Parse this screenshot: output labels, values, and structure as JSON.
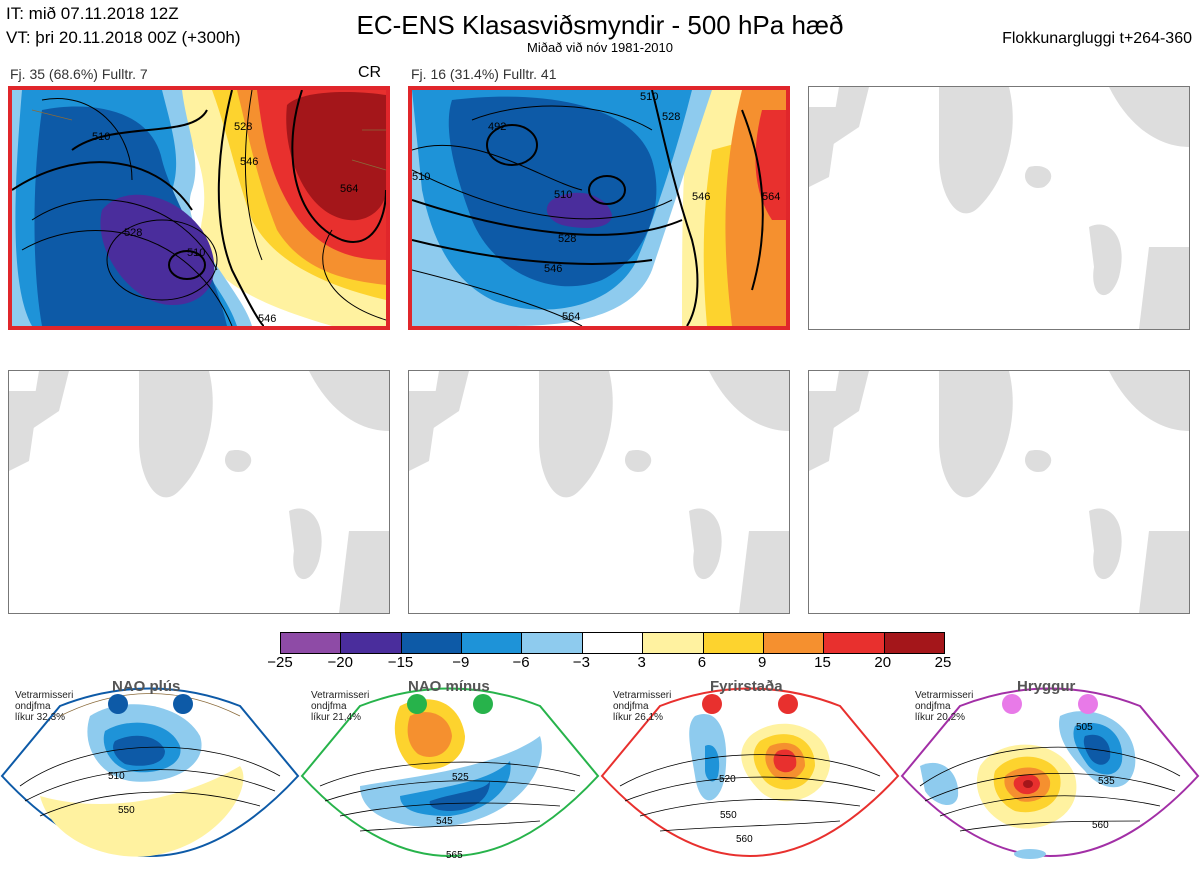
{
  "header": {
    "it_line": "IT: mið 07.11.2018 12Z",
    "vt_line": "VT: þri 20.11.2018 00Z  (+300h)",
    "title": "EC-ENS Klasasviðsmyndir - 500 hPa hæð",
    "subtitle": "Miðað við nóv 1981-2010",
    "window": "Flokkunargluggi t+264-360"
  },
  "clusters": [
    {
      "label": "Fj. 35 (68.6%)   Fulltr. 7",
      "tag": "CR",
      "contours": [
        "510",
        "528",
        "546",
        "564",
        "528",
        "510",
        "546"
      ]
    },
    {
      "label": "Fj. 16 (31.4%)   Fulltr. 41",
      "tag": "",
      "contours": [
        "492",
        "510",
        "528",
        "546",
        "564",
        "510",
        "546",
        "564",
        "528",
        "510"
      ]
    }
  ],
  "colorbar": {
    "colors": [
      "#8e4ba6",
      "#4a2d9c",
      "#0d5aa7",
      "#1e93d8",
      "#8ecbee",
      "#ffffff",
      "#fff2a0",
      "#fdd32e",
      "#f5902f",
      "#e8302e",
      "#a4161a"
    ],
    "labels": [
      "−25",
      "−20",
      "−15",
      "−9",
      "−6",
      "−3",
      "3",
      "6",
      "9",
      "15",
      "20",
      "25"
    ]
  },
  "regimes": [
    {
      "name": "NAO plús",
      "note1": "Vetrarmisseri",
      "note2": "ondjfma",
      "note3": "líkur 32,3%",
      "color": "#0d5aa7",
      "contours": [
        "510",
        "550"
      ]
    },
    {
      "name": "NAO mínus",
      "note1": "Vetrarmisseri",
      "note2": "ondjfma",
      "note3": "líkur 21,4%",
      "color": "#27b34b",
      "contours": [
        "525",
        "545",
        "565"
      ]
    },
    {
      "name": "Fyrirstaða",
      "note1": "Vetrarmisseri",
      "note2": "ondjfma",
      "note3": "líkur 26,1%",
      "color": "#e8302e",
      "contours": [
        "520",
        "550",
        "560"
      ]
    },
    {
      "name": "Hryggur",
      "note1": "Vetrarmisseri",
      "note2": "ondjfma",
      "note3": "líkur 20,2%",
      "color": "#e87ae8",
      "contours": [
        "505",
        "535",
        "560"
      ]
    }
  ],
  "chart_data": {
    "type": "heatmap",
    "title": "EC-ENS Klasasviðsmyndir - 500 hPa hæð",
    "colorbar_ticks": [
      -25,
      -20,
      -15,
      -9,
      -6,
      -3,
      3,
      6,
      9,
      15,
      20,
      25
    ],
    "clusters": [
      {
        "members": 35,
        "percent": 68.6,
        "representative": 7
      },
      {
        "members": 16,
        "percent": 31.4,
        "representative": 41
      }
    ],
    "regime_probabilities": [
      {
        "regime": "NAO plús",
        "percent": 32.3
      },
      {
        "regime": "NAO mínus",
        "percent": 21.4
      },
      {
        "regime": "Fyrirstaða",
        "percent": 26.1
      },
      {
        "regime": "Hryggur",
        "percent": 20.2
      }
    ]
  }
}
